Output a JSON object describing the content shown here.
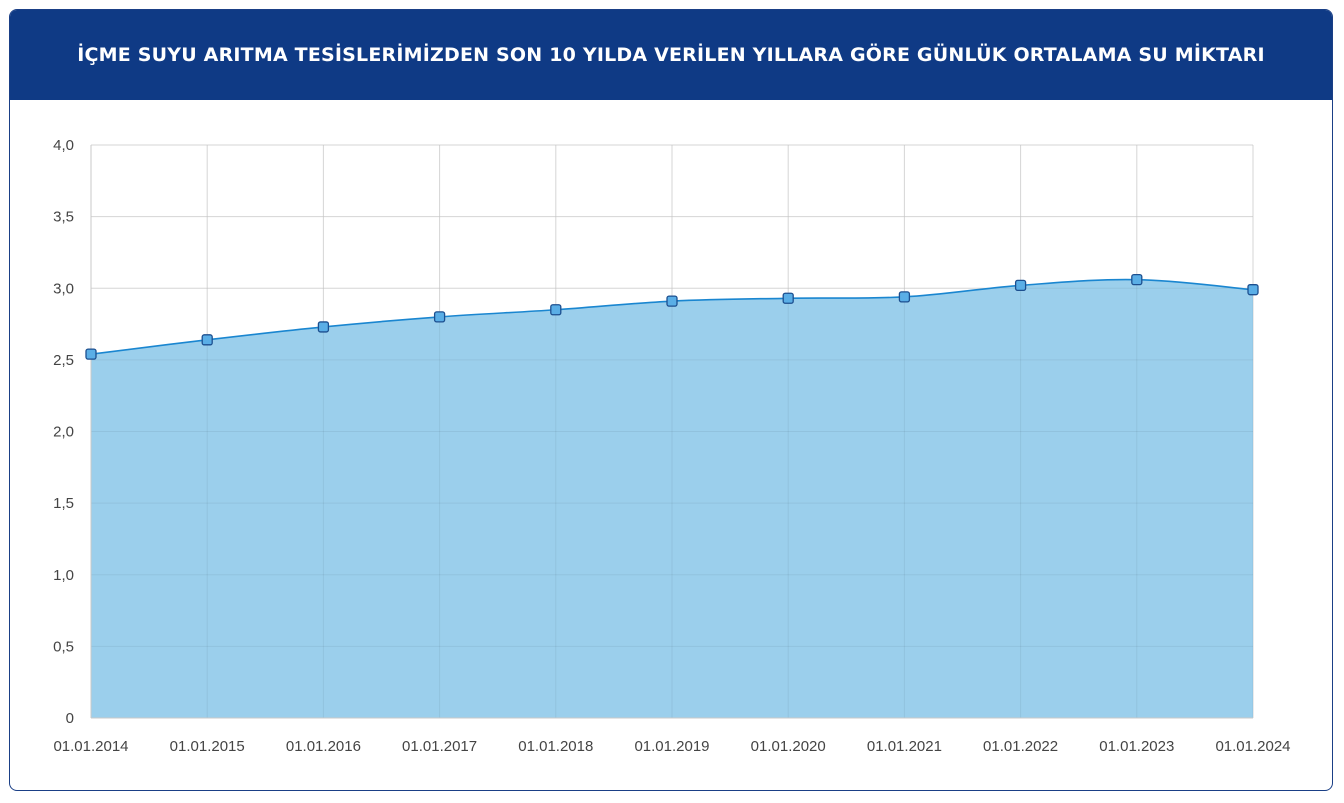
{
  "header": {
    "title": "İÇME SUYU ARITMA TESİSLERİMİZDEN SON 10 YILDA VERİLEN YILLARA GÖRE GÜNLÜK ORTALAMA SU MİKTARI"
  },
  "colors": {
    "header_bg": "#0f3a85",
    "line": "#1a86d0",
    "fill": "#9bcfec",
    "marker_fill": "#5aaee6",
    "marker_stroke": "#1c4f8f",
    "grid": "#e3e3e3"
  },
  "chart_data": {
    "type": "area",
    "title": "İÇME SUYU ARITMA TESİSLERİMİZDEN SON 10 YILDA VERİLEN YILLARA GÖRE GÜNLÜK ORTALAMA SU MİKTARI",
    "xlabel": "",
    "ylabel": "",
    "categories": [
      "01.01.2014",
      "01.01.2015",
      "01.01.2016",
      "01.01.2017",
      "01.01.2018",
      "01.01.2019",
      "01.01.2020",
      "01.01.2021",
      "01.01.2022",
      "01.01.2023",
      "01.01.2024"
    ],
    "series": [
      {
        "values": [
          2.54,
          2.64,
          2.73,
          2.8,
          2.85,
          2.91,
          2.93,
          2.94,
          3.02,
          3.06,
          2.99
        ]
      }
    ],
    "ylim": [
      0,
      4
    ],
    "yticks": [
      "0",
      "0,5",
      "1,0",
      "1,5",
      "2,0",
      "2,5",
      "3,0",
      "3,5",
      "4,0"
    ],
    "ytick_values": [
      0,
      0.5,
      1.0,
      1.5,
      2.0,
      2.5,
      3.0,
      3.5,
      4.0
    ],
    "grid": true,
    "legend": "none"
  }
}
